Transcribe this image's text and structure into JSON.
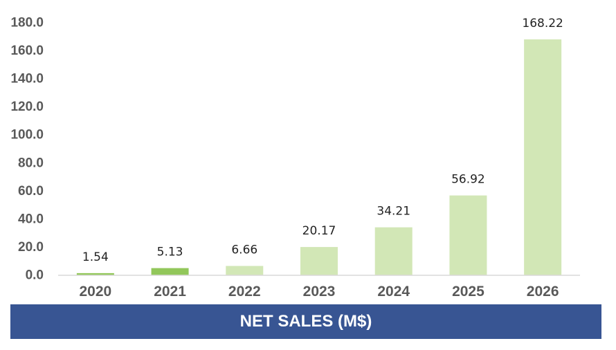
{
  "chart_data": {
    "type": "bar",
    "title": "NET SALES (M$)",
    "categories": [
      "2020",
      "2021",
      "2022",
      "2023",
      "2024",
      "2025",
      "2026"
    ],
    "values": [
      1.54,
      5.13,
      6.66,
      20.17,
      34.21,
      56.92,
      168.22
    ],
    "value_labels": [
      "1.54",
      "5.13",
      "6.66",
      "20.17",
      "34.21",
      "56.92",
      "168.22"
    ],
    "ylim": [
      0,
      180
    ],
    "yticks": [
      "0.0",
      "20.0",
      "40.0",
      "60.0",
      "80.0",
      "100.0",
      "120.0",
      "140.0",
      "160.0",
      "180.0"
    ],
    "grid": false,
    "xlabel": "",
    "ylabel": "",
    "colors": {
      "bar": "#d2e7b6",
      "bar_highlight": "#92c75a",
      "highlight_categories": [
        "2020",
        "2021"
      ],
      "title_background": "#385593",
      "title_text": "#ffffff",
      "axis_line": "#d9d9d9"
    }
  }
}
